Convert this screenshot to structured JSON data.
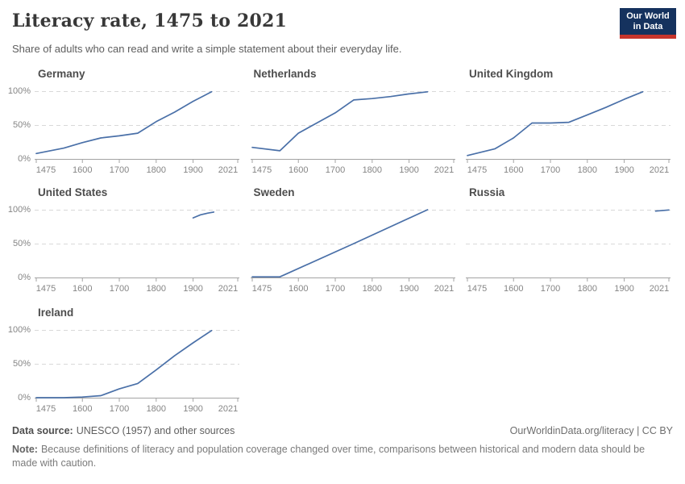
{
  "header": {
    "title": "Literacy rate, 1475 to 2021",
    "subtitle": "Share of adults who can read and write a simple statement about their everyday life.",
    "logo": {
      "line1": "Our World",
      "line2": "in Data"
    }
  },
  "axis": {
    "xlim": [
      1475,
      2021
    ],
    "ylim": [
      0,
      100
    ],
    "x_ticks": [
      "1475",
      "1600",
      "1700",
      "1800",
      "1900",
      "2021"
    ],
    "x_tick_years": [
      1475,
      1600,
      1700,
      1800,
      1900,
      2021
    ],
    "y_ticks": [
      {
        "label": "0%",
        "value": 0
      },
      {
        "label": "50%",
        "value": 50
      },
      {
        "label": "100%",
        "value": 100
      }
    ],
    "grid": "horizontal dashed gridlines at 50% and 100%, solid baseline at 0%",
    "legend": "none (one facet per country)"
  },
  "chart_data": [
    {
      "type": "line",
      "title": "Germany",
      "x": [
        1475,
        1550,
        1600,
        1650,
        1700,
        1750,
        1800,
        1850,
        1900,
        1950
      ],
      "values": [
        8,
        16,
        24,
        31,
        34,
        38,
        55,
        69,
        85,
        99
      ]
    },
    {
      "type": "line",
      "title": "Netherlands",
      "x": [
        1475,
        1550,
        1600,
        1650,
        1700,
        1750,
        1800,
        1850,
        1900,
        1950
      ],
      "values": [
        17,
        12,
        38,
        53,
        68,
        87,
        89,
        92,
        96,
        99
      ]
    },
    {
      "type": "line",
      "title": "United Kingdom",
      "x": [
        1475,
        1550,
        1600,
        1650,
        1700,
        1750,
        1800,
        1850,
        1900,
        1950
      ],
      "values": [
        5,
        15,
        31,
        53,
        53,
        54,
        65,
        76,
        88,
        99
      ]
    },
    {
      "type": "line",
      "title": "United States",
      "x": [
        1900,
        1920,
        1940,
        1956
      ],
      "values": [
        88,
        92.5,
        95,
        96.5
      ]
    },
    {
      "type": "line",
      "title": "Sweden",
      "x": [
        1475,
        1550,
        1750,
        1950
      ],
      "values": [
        1,
        1,
        50,
        100
      ]
    },
    {
      "type": "line",
      "title": "Russia",
      "x": [
        1985,
        2021
      ],
      "values": [
        98,
        99.7
      ]
    },
    {
      "type": "line",
      "title": "Ireland",
      "x": [
        1475,
        1550,
        1600,
        1650,
        1700,
        1750,
        1800,
        1850,
        1900,
        1950
      ],
      "values": [
        0,
        0,
        1,
        3,
        13,
        21,
        41,
        62,
        81,
        99
      ]
    }
  ],
  "colors": {
    "line": "#4a70a8",
    "grid": "#d9d9d9",
    "axis": "#a3a3a3",
    "tick_label": "#858585",
    "chart_title": "#4d4d4d",
    "logo_bg": "#15325e",
    "logo_red": "#c7352c"
  },
  "footer": {
    "datasource_label": "Data source:",
    "datasource_text": "UNESCO (1957) and other sources",
    "link": "OurWorldinData.org/literacy | CC BY",
    "note_label": "Note:",
    "note_text": "Because definitions of literacy and population coverage changed over time, comparisons between historical and modern data should be made with caution."
  }
}
